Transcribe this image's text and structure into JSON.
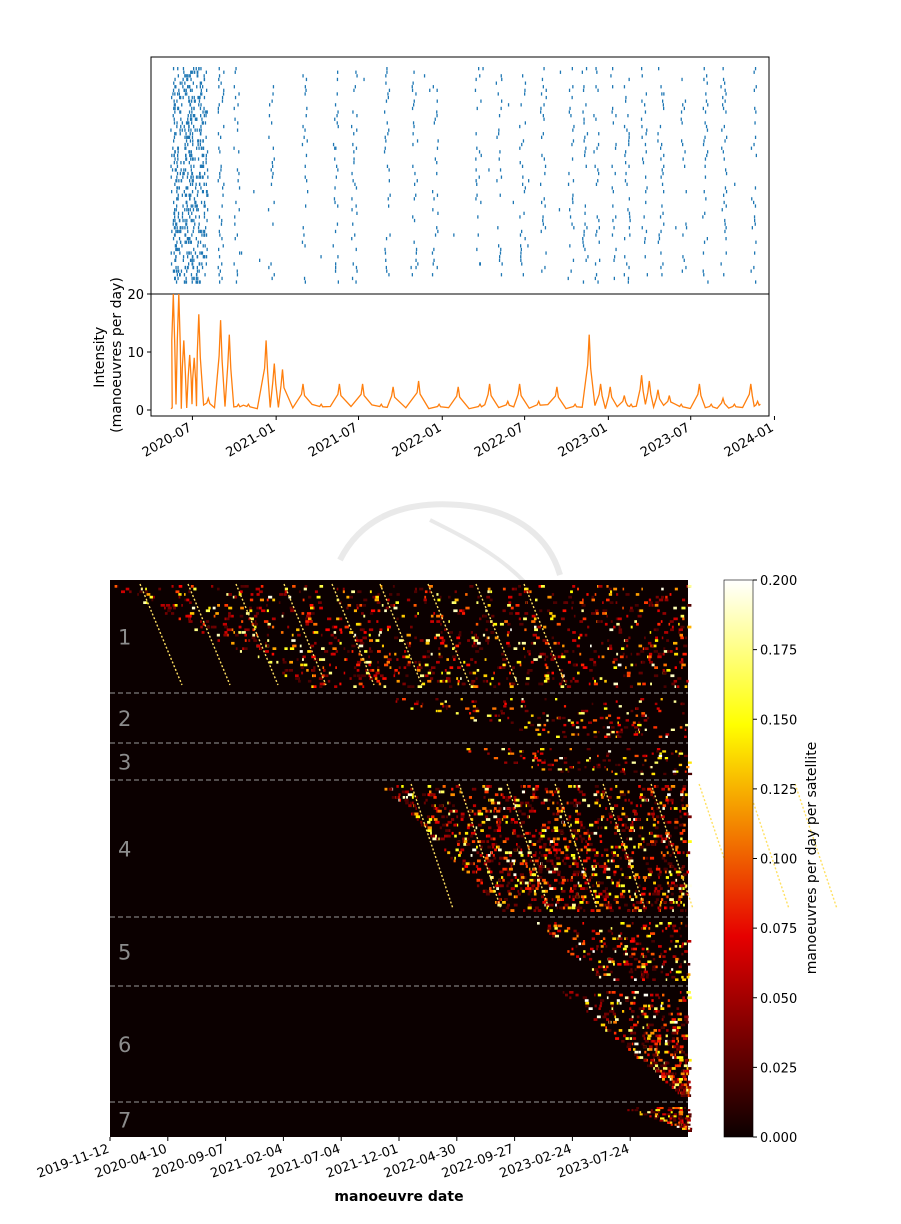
{
  "colors": {
    "event": "#1f77b4",
    "intensity": "#ff7f0e",
    "heat_bg": "#0b0000",
    "divider": "#9a9a9a",
    "group_label": "#8c8c8c",
    "watermark": "#d6d6d6"
  },
  "chart_data": [
    {
      "type": "scatter",
      "description_level": "event raster of manoeuvres (one row per satellite), shares time axis with the intensity plot",
      "x_range": [
        "2020-04-01",
        "2023-12-20"
      ],
      "markers": "vertical ticks",
      "burst_dates": [
        "2020-05-20",
        "2020-06-25",
        "2020-09-01",
        "2020-10-05",
        "2020-12-20",
        "2021-03-05",
        "2021-05-10",
        "2021-06-20",
        "2021-09-01",
        "2021-11-01",
        "2021-12-15",
        "2022-03-20",
        "2022-05-05",
        "2022-06-25",
        "2022-08-10",
        "2022-10-10",
        "2022-11-10",
        "2022-12-05",
        "2023-01-10",
        "2023-02-10",
        "2023-03-20",
        "2023-04-25",
        "2023-06-15",
        "2023-08-01",
        "2023-09-10",
        "2023-11-15"
      ]
    },
    {
      "type": "line",
      "ylabel": "Intensity\n(manoeuvres per day)",
      "ylabel_lines": [
        "Intensity",
        "(manoeuvres per day)"
      ],
      "ylim": [
        0,
        20
      ],
      "yticks": [
        0,
        10,
        20
      ],
      "x_range": [
        "2020-04-01",
        "2023-12-20"
      ],
      "xticks": [
        "2020-07-01",
        "2021-01-01",
        "2021-07-01",
        "2022-01-01",
        "2022-07-01",
        "2023-01-01",
        "2023-07-01",
        "2024-01-01"
      ],
      "xtick_labels": [
        "2020-07",
        "2021-01",
        "2021-07",
        "2022-01",
        "2022-07",
        "2023-01",
        "2023-07",
        "2024-01"
      ],
      "peaks": [
        {
          "date": "2020-05-20",
          "value": 20
        },
        {
          "date": "2020-06-01",
          "value": 20
        },
        {
          "date": "2020-06-12",
          "value": 12
        },
        {
          "date": "2020-06-25",
          "value": 9.5
        },
        {
          "date": "2020-07-05",
          "value": 9
        },
        {
          "date": "2020-07-15",
          "value": 16.5
        },
        {
          "date": "2020-08-05",
          "value": 2
        },
        {
          "date": "2020-09-01",
          "value": 15.5
        },
        {
          "date": "2020-09-20",
          "value": 13
        },
        {
          "date": "2020-10-10",
          "value": 1
        },
        {
          "date": "2020-11-01",
          "value": 1
        },
        {
          "date": "2020-12-10",
          "value": 12
        },
        {
          "date": "2020-12-28",
          "value": 8
        },
        {
          "date": "2021-01-15",
          "value": 7
        },
        {
          "date": "2021-03-01",
          "value": 4.5
        },
        {
          "date": "2021-04-10",
          "value": 1
        },
        {
          "date": "2021-05-20",
          "value": 4.5
        },
        {
          "date": "2021-07-10",
          "value": 4.5
        },
        {
          "date": "2021-08-20",
          "value": 1
        },
        {
          "date": "2021-09-15",
          "value": 4
        },
        {
          "date": "2021-11-10",
          "value": 5
        },
        {
          "date": "2021-12-25",
          "value": 1
        },
        {
          "date": "2022-02-05",
          "value": 4
        },
        {
          "date": "2022-03-25",
          "value": 1
        },
        {
          "date": "2022-04-15",
          "value": 4.5
        },
        {
          "date": "2022-05-25",
          "value": 1.5
        },
        {
          "date": "2022-06-20",
          "value": 4.5
        },
        {
          "date": "2022-08-01",
          "value": 1.5
        },
        {
          "date": "2022-09-10",
          "value": 4
        },
        {
          "date": "2022-10-20",
          "value": 1
        },
        {
          "date": "2022-11-20",
          "value": 13
        },
        {
          "date": "2022-12-15",
          "value": 4.5
        },
        {
          "date": "2023-01-05",
          "value": 4
        },
        {
          "date": "2023-02-05",
          "value": 2.5
        },
        {
          "date": "2023-02-20",
          "value": 1
        },
        {
          "date": "2023-03-15",
          "value": 6
        },
        {
          "date": "2023-04-01",
          "value": 5
        },
        {
          "date": "2023-04-20",
          "value": 3.5
        },
        {
          "date": "2023-05-15",
          "value": 2.5
        },
        {
          "date": "2023-06-10",
          "value": 1
        },
        {
          "date": "2023-07-20",
          "value": 4.5
        },
        {
          "date": "2023-08-15",
          "value": 1
        },
        {
          "date": "2023-09-10",
          "value": 2
        },
        {
          "date": "2023-10-05",
          "value": 1
        },
        {
          "date": "2023-11-10",
          "value": 4.5
        },
        {
          "date": "2023-11-25",
          "value": 1.5
        }
      ]
    },
    {
      "type": "heatmap",
      "xlabel": "manoeuvre date",
      "x_range": [
        "2019-11-12",
        "2023-11-20"
      ],
      "xtick_labels": [
        "2019-11-12",
        "2020-04-10",
        "2020-09-07",
        "2021-02-04",
        "2021-07-04",
        "2021-12-01",
        "2022-04-30",
        "2022-09-27",
        "2023-02-24",
        "2023-07-24"
      ],
      "colorbar": {
        "label": "manoeuvres per day per satellite",
        "range": [
          0,
          0.2
        ],
        "ticks": [
          "0.000",
          "0.025",
          "0.050",
          "0.075",
          "0.100",
          "0.125",
          "0.150",
          "0.175",
          "0.200"
        ],
        "colormap": "hot"
      },
      "groups": [
        {
          "label": "1",
          "active_from_top_row": "2019-11-12",
          "active_from_bottom_row": "2021-03-20",
          "character": "dense diagonal streaks"
        },
        {
          "label": "2",
          "active_from_top_row": "2021-08-15",
          "active_from_bottom_row": "2022-12-01",
          "character": "sparse"
        },
        {
          "label": "3",
          "active_from_top_row": "2022-03-01",
          "active_from_bottom_row": "2022-12-20",
          "character": "sparse"
        },
        {
          "label": "4",
          "active_from_top_row": "2021-10-01",
          "active_from_bottom_row": "2022-08-01",
          "character": "dense diagonal streaks"
        },
        {
          "label": "5",
          "active_from_top_row": "2022-10-20",
          "active_from_bottom_row": "2023-04-15",
          "character": "speckled"
        },
        {
          "label": "6",
          "active_from_top_row": "2023-01-01",
          "active_from_bottom_row": "2023-11-01",
          "character": "speckled edge"
        },
        {
          "label": "7",
          "active_from_top_row": "2023-06-01",
          "active_from_bottom_row": "2023-11-20",
          "character": "sparse"
        }
      ]
    }
  ]
}
